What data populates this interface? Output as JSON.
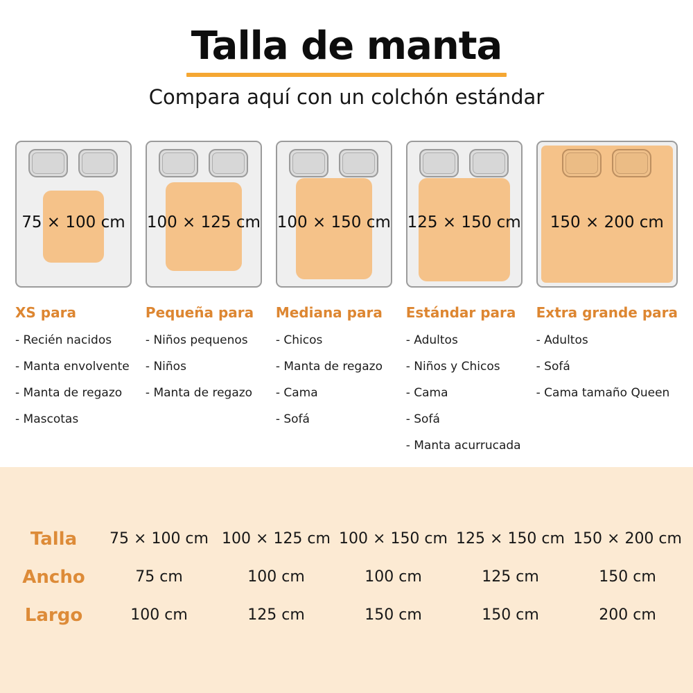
{
  "header": {
    "title": "Talla de manta",
    "subtitle": "Compara aquí con un colchón estándar"
  },
  "sizes": [
    {
      "dimensions": "75 × 100 cm",
      "category": "XS para",
      "uses": [
        "Recién nacidos",
        "Manta envolvente",
        "Manta de regazo",
        "Mascotas"
      ]
    },
    {
      "dimensions": "100 × 125 cm",
      "category": "Pequeña para",
      "uses": [
        "Niños pequenos",
        "Niños",
        "Manta de regazo"
      ]
    },
    {
      "dimensions": "100 × 150 cm",
      "category": "Mediana para",
      "uses": [
        "Chicos",
        "Manta de regazo",
        "Cama",
        "Sofá"
      ]
    },
    {
      "dimensions": "125 × 150 cm",
      "category": "Estándar para",
      "uses": [
        "Adultos",
        "Niños y Chicos",
        "Cama",
        "Sofá",
        "Manta acurrucada"
      ]
    },
    {
      "dimensions": "150 × 200 cm",
      "category": "Extra grande para",
      "uses": [
        "Adultos",
        "Sofá",
        "Cama tamaño Queen"
      ]
    }
  ],
  "table": {
    "rows": [
      {
        "label": "Talla",
        "values": [
          "75 × 100 cm",
          "100 × 125 cm",
          "100 × 150 cm",
          "125 × 150 cm",
          "150 × 200 cm"
        ]
      },
      {
        "label": "Ancho",
        "values": [
          "75 cm",
          "100 cm",
          "100 cm",
          "125 cm",
          "150 cm"
        ]
      },
      {
        "label": "Largo",
        "values": [
          "100 cm",
          "125 cm",
          "150 cm",
          "150 cm",
          "200 cm"
        ]
      }
    ]
  },
  "colors": {
    "accent_orange": "#DD8631",
    "underline_orange": "#F5A733",
    "blanket_orange": "#F5C289",
    "table_background": "#FCEAD3",
    "mattress_gray": "#EFEFEF",
    "pillow_gray": "#DCDCDC"
  }
}
